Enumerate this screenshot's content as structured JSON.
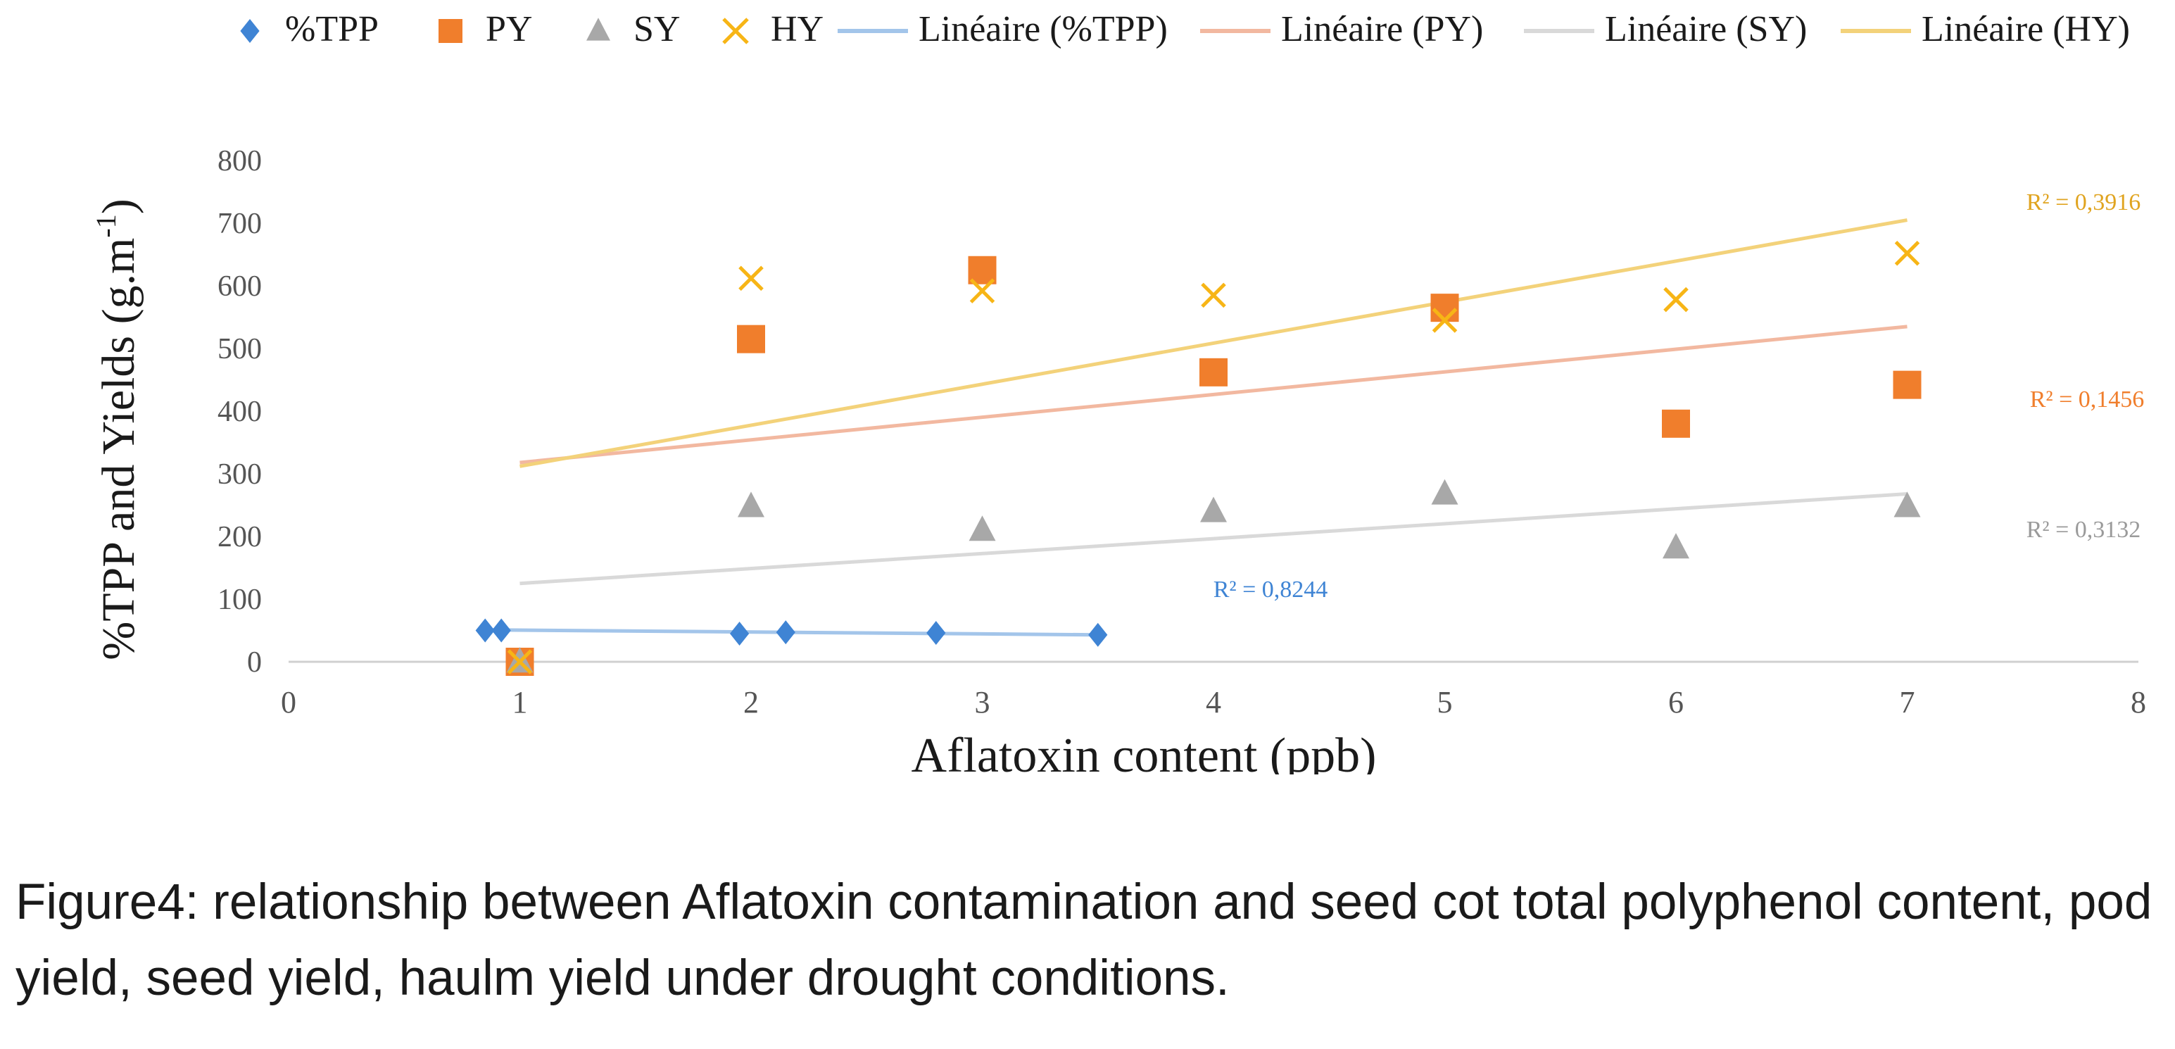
{
  "chart_data": {
    "type": "scatter",
    "title": "",
    "xlabel": "Aflatoxin content (ppb)",
    "ylabel": "%TPP  and Yields (g.m",
    "ylabel_sup": "-1",
    "ylabel_close": ")",
    "xlim": [
      0,
      8
    ],
    "ylim": [
      0,
      800
    ],
    "x_ticks": [
      0,
      1,
      2,
      3,
      4,
      5,
      6,
      7,
      8
    ],
    "y_ticks": [
      0,
      100,
      200,
      300,
      400,
      500,
      600,
      700,
      800
    ],
    "grid": false,
    "legend_position": "top",
    "series": [
      {
        "name": "%TPP",
        "marker": "diamond",
        "color": "#3f84d4",
        "x": [
          0.85,
          0.92,
          1.95,
          2.15,
          2.8,
          3.5
        ],
        "y": [
          50,
          50,
          45,
          47,
          46,
          43
        ]
      },
      {
        "name": "PY",
        "marker": "square",
        "color": "#f07e2c",
        "x": [
          1,
          2,
          3,
          4,
          5,
          6,
          7
        ],
        "y": [
          0,
          515,
          625,
          462,
          565,
          380,
          442
        ]
      },
      {
        "name": "SY",
        "marker": "triangle",
        "color": "#a8a8a8",
        "x": [
          1,
          2,
          3,
          4,
          5,
          6,
          7
        ],
        "y": [
          0,
          248,
          210,
          240,
          268,
          182,
          248
        ]
      },
      {
        "name": "HY",
        "marker": "x",
        "color": "#f7b516",
        "x": [
          1,
          2,
          3,
          4,
          5,
          6,
          7
        ],
        "y": [
          0,
          612,
          592,
          585,
          545,
          578,
          652
        ]
      }
    ],
    "trendlines": [
      {
        "name": "Linéaire (%TPP)",
        "color": "#a3c5ea",
        "x": [
          0.85,
          3.5
        ],
        "y": [
          51,
          43
        ],
        "r2": "R² = 0,8244"
      },
      {
        "name": "Linéaire (PY)",
        "color": "#f2b8a0",
        "x": [
          1,
          7
        ],
        "y": [
          318,
          535
        ],
        "r2": "R² = 0,1456"
      },
      {
        "name": "Linéaire (SY)",
        "color": "#d9d9d9",
        "x": [
          1,
          7
        ],
        "y": [
          125,
          268
        ],
        "r2": "R² = 0,3132"
      },
      {
        "name": "Linéaire (HY)",
        "color": "#f3d27a",
        "x": [
          1,
          7
        ],
        "y": [
          312,
          705
        ],
        "r2": "R² = 0,3916"
      }
    ]
  },
  "caption": {
    "line1": "Figure4: relationship between Aflatoxin contamination and seed cot total polyphenol content, pod",
    "line2": "yield, seed yield, haulm yield under drought conditions."
  }
}
